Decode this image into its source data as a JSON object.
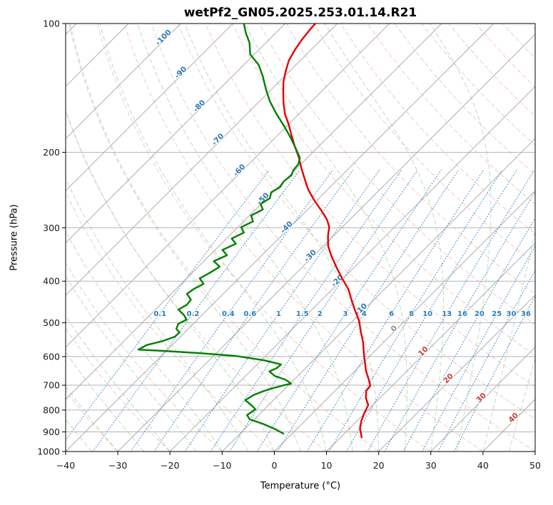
{
  "chart_data": {
    "type": "line",
    "variant": "skew-t-log-p",
    "title": "wetPf2_GN05.2025.253.01.14.R21",
    "xlabel": "Temperature (°C)",
    "ylabel": "Pressure (hPa)",
    "xlim": [
      -40,
      50
    ],
    "pressure_lim": [
      1000,
      100
    ],
    "x_ticks": [
      -40,
      -30,
      -20,
      -10,
      0,
      10,
      20,
      30,
      40,
      50
    ],
    "x_tick_labels": [
      "−40",
      "−30",
      "−20",
      "−10",
      "0",
      "10",
      "20",
      "30",
      "40",
      "50"
    ],
    "y_ticks": [
      100,
      200,
      300,
      400,
      500,
      600,
      700,
      800,
      900,
      1000
    ],
    "y_tick_labels": [
      "100",
      "200",
      "300",
      "400",
      "500",
      "600",
      "700",
      "800",
      "900",
      "1000"
    ],
    "grid": true,
    "legend": "none",
    "skew_degrees": 45,
    "isotherms": {
      "start": -140,
      "end": 50,
      "step": 10
    },
    "isotherm_labels": [
      -100,
      -90,
      -80,
      -70,
      -60,
      -50,
      -40,
      -30,
      -20,
      -10,
      0,
      10,
      20,
      30,
      40
    ],
    "dry_adiabats_theta_c": {
      "start": -40,
      "end": 190,
      "step": 10
    },
    "moist_adiabats_t0_c": {
      "start": -40,
      "end": 45,
      "step": 5
    },
    "mixing_ratio_lines_g_kg": [
      0.1,
      0.2,
      0.4,
      0.6,
      1,
      1.5,
      2,
      3,
      4,
      6,
      8,
      10,
      13,
      16,
      20,
      25,
      30,
      36
    ],
    "mixing_ratio_label_pressure": 476,
    "colors": {
      "temperature": "#e60000",
      "dewpoint": "#008000",
      "isotherm": "#adadad",
      "isobar": "#b3b3b3",
      "dry_adiabat": "#e8a095",
      "moist_adiabat": "#8fbc8b",
      "mixing_ratio": "#4a8fcb",
      "mixing_ratio_label": "#2f7cb8",
      "label_negative": "#3279b7",
      "label_zero": "#8a8a8a",
      "label_positive": "#c84040",
      "frame": "#000000",
      "tick_text": "#1a1a1a"
    },
    "series": [
      {
        "name": "temperature",
        "color_key": "temperature",
        "points_p_t": [
          [
            926,
            14.0
          ],
          [
            881,
            11.9
          ],
          [
            848,
            10.8
          ],
          [
            810,
            9.8
          ],
          [
            779,
            9.1
          ],
          [
            750,
            7.3
          ],
          [
            722,
            6.0
          ],
          [
            702,
            5.8
          ],
          [
            679,
            4.3
          ],
          [
            648,
            2.1
          ],
          [
            624,
            0.6
          ],
          [
            589,
            -1.7
          ],
          [
            556,
            -3.9
          ],
          [
            525,
            -6.4
          ],
          [
            495,
            -8.8
          ],
          [
            468,
            -11.6
          ],
          [
            442,
            -14.3
          ],
          [
            417,
            -17.0
          ],
          [
            394,
            -20.2
          ],
          [
            372,
            -23.3
          ],
          [
            351,
            -26.3
          ],
          [
            331,
            -29.1
          ],
          [
            313,
            -31.1
          ],
          [
            299,
            -32.5
          ],
          [
            287,
            -34.4
          ],
          [
            273,
            -37.3
          ],
          [
            258,
            -40.7
          ],
          [
            244,
            -43.8
          ],
          [
            230,
            -46.6
          ],
          [
            217,
            -49.3
          ],
          [
            205,
            -51.8
          ],
          [
            194,
            -54.5
          ],
          [
            183,
            -57.2
          ],
          [
            172,
            -60.0
          ],
          [
            163,
            -62.6
          ],
          [
            154,
            -64.9
          ],
          [
            145,
            -67.1
          ],
          [
            137,
            -69.1
          ],
          [
            129,
            -70.8
          ],
          [
            122,
            -72.2
          ],
          [
            115,
            -73.1
          ],
          [
            109,
            -73.7
          ],
          [
            103,
            -74.1
          ],
          [
            100,
            -74.2
          ]
        ]
      },
      {
        "name": "dewpoint",
        "color_key": "dewpoint",
        "points_p_t": [
          [
            908,
            -1.7
          ],
          [
            885,
            -4.3
          ],
          [
            861,
            -7.6
          ],
          [
            841,
            -10.9
          ],
          [
            822,
            -12.2
          ],
          [
            797,
            -11.7
          ],
          [
            779,
            -13.3
          ],
          [
            759,
            -15.4
          ],
          [
            738,
            -14.8
          ],
          [
            722,
            -13.6
          ],
          [
            711,
            -12.4
          ],
          [
            700,
            -10.9
          ],
          [
            694,
            -9.8
          ],
          [
            679,
            -11.7
          ],
          [
            666,
            -14.4
          ],
          [
            650,
            -16.3
          ],
          [
            638,
            -15.5
          ],
          [
            626,
            -15.4
          ],
          [
            612,
            -19.5
          ],
          [
            598,
            -25.8
          ],
          [
            589,
            -33.2
          ],
          [
            582,
            -40.4
          ],
          [
            578,
            -45.6
          ],
          [
            564,
            -44.9
          ],
          [
            552,
            -42.6
          ],
          [
            539,
            -41.1
          ],
          [
            527,
            -41.0
          ],
          [
            517,
            -42.3
          ],
          [
            503,
            -42.9
          ],
          [
            492,
            -42.1
          ],
          [
            479,
            -43.6
          ],
          [
            466,
            -45.6
          ],
          [
            454,
            -44.9
          ],
          [
            442,
            -45.1
          ],
          [
            428,
            -47.0
          ],
          [
            417,
            -46.6
          ],
          [
            406,
            -45.7
          ],
          [
            394,
            -47.5
          ],
          [
            382,
            -46.6
          ],
          [
            370,
            -45.9
          ],
          [
            359,
            -48.1
          ],
          [
            348,
            -46.7
          ],
          [
            338,
            -48.6
          ],
          [
            327,
            -47.2
          ],
          [
            318,
            -49.0
          ],
          [
            308,
            -47.8
          ],
          [
            299,
            -49.4
          ],
          [
            290,
            -48.2
          ],
          [
            281,
            -49.7
          ],
          [
            272,
            -48.6
          ],
          [
            264,
            -50.1
          ],
          [
            256,
            -49.4
          ],
          [
            248,
            -50.3
          ],
          [
            241,
            -49.6
          ],
          [
            234,
            -50.0
          ],
          [
            226,
            -49.7
          ],
          [
            220,
            -50.3
          ],
          [
            213,
            -50.5
          ],
          [
            206,
            -51.4
          ],
          [
            197,
            -53.7
          ],
          [
            186,
            -56.7
          ],
          [
            174,
            -60.4
          ],
          [
            163,
            -64.2
          ],
          [
            152,
            -68.0
          ],
          [
            142,
            -71.2
          ],
          [
            133,
            -74.1
          ],
          [
            125,
            -77.1
          ],
          [
            118,
            -80.8
          ],
          [
            111,
            -83.1
          ],
          [
            105,
            -85.8
          ],
          [
            100,
            -87.9
          ]
        ]
      }
    ]
  }
}
